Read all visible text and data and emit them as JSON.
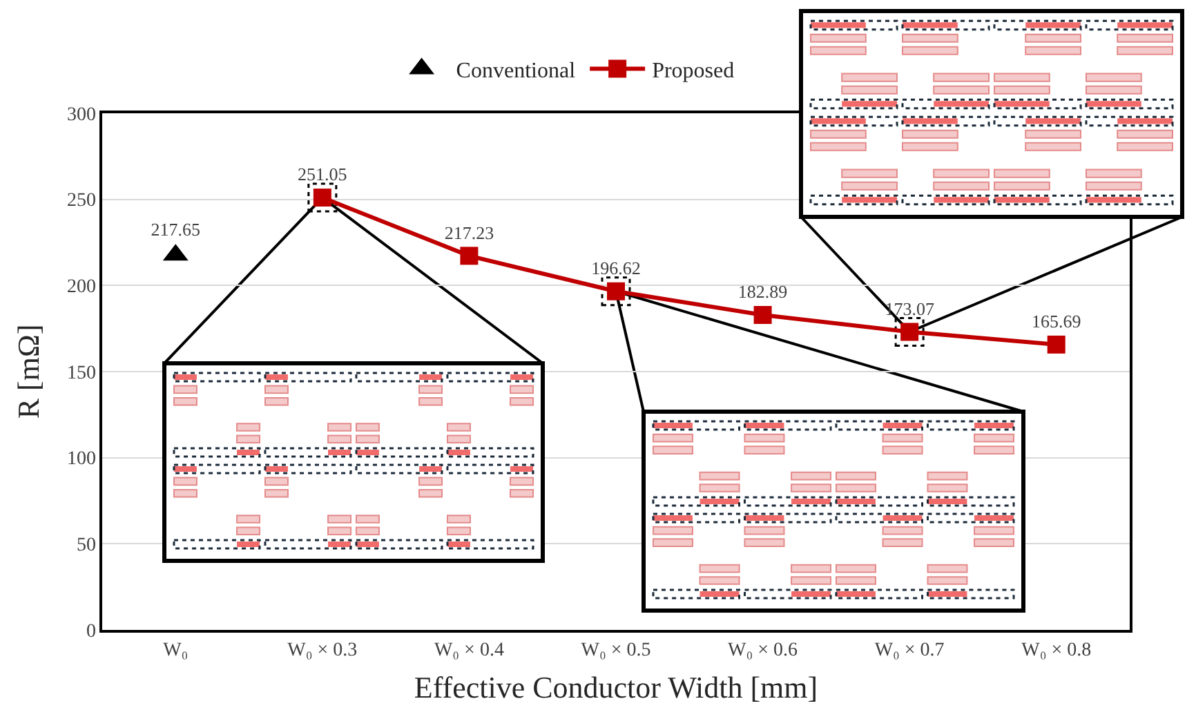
{
  "chart_data": {
    "type": "line",
    "categories": [
      "W₀",
      "W₀ × 0.3",
      "W₀ × 0.4",
      "W₀ × 0.5",
      "W₀ × 0.6",
      "W₀ × 0.7",
      "W₀ × 0.8"
    ],
    "xlabel": "Effective Conductor Width [mm]",
    "ylabel": "R [mΩ]",
    "ylim": [
      0,
      300
    ],
    "yticks": [
      0,
      50,
      100,
      150,
      200,
      250,
      300
    ],
    "grid": "y",
    "legend": "top",
    "data_labels": true,
    "series": [
      {
        "name": "Conventional",
        "type": "scatter",
        "marker": "triangle",
        "color": "#000000",
        "values": [
          217.65,
          null,
          null,
          null,
          null,
          null,
          null
        ]
      },
      {
        "name": "Proposed",
        "marker": "square",
        "line_style": "solid",
        "color": "#c00000",
        "values": [
          null,
          251.05,
          217.23,
          196.62,
          182.89,
          173.07,
          165.69
        ]
      }
    ]
  }
}
